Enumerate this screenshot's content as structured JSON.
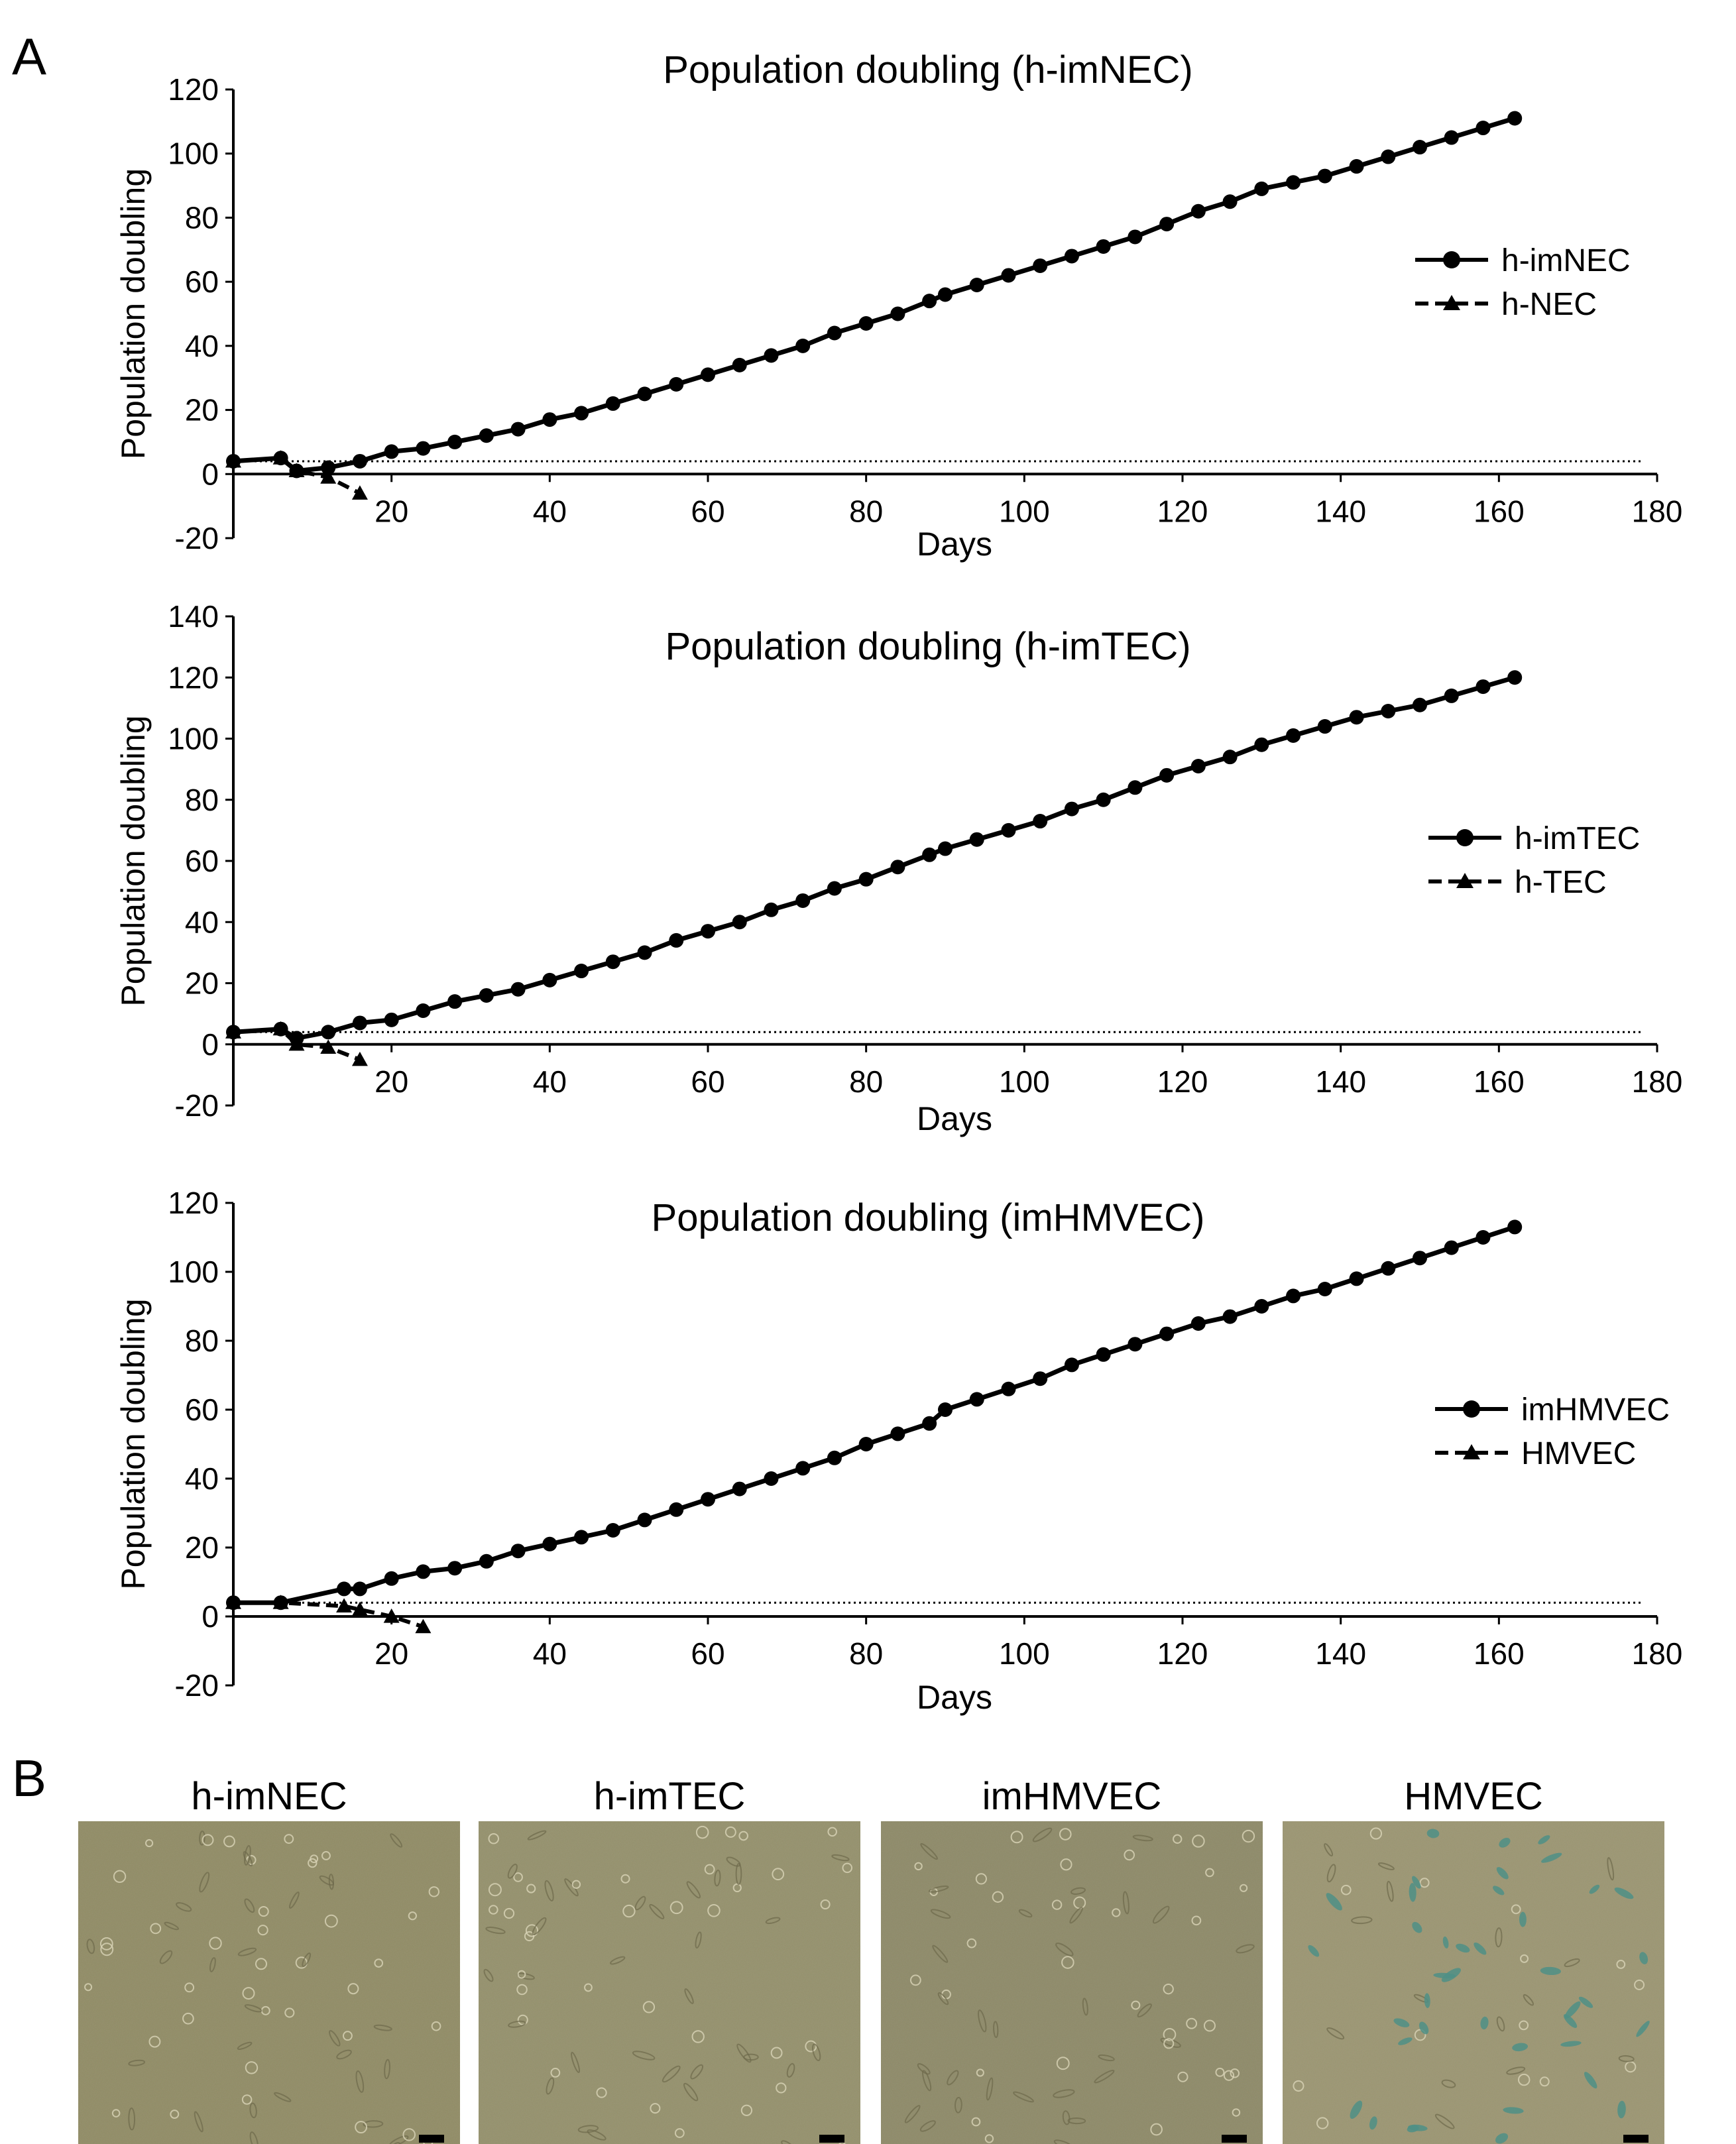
{
  "figure": {
    "panel_a_label": "A",
    "panel_b_label": "B"
  },
  "chart_data": [
    {
      "type": "line",
      "title": "Population doubling (h-imNEC)",
      "xlabel": "Days",
      "ylabel": "Population doubling",
      "xlim": [
        0,
        180
      ],
      "ylim": [
        -20,
        120
      ],
      "xticks": [
        20,
        40,
        60,
        80,
        100,
        120,
        140,
        160,
        180
      ],
      "yticks": [
        -20,
        0,
        20,
        40,
        60,
        80,
        100,
        120
      ],
      "reference_line_y": 4,
      "series": [
        {
          "name": "h-imNEC",
          "marker": "circle",
          "dash": "solid",
          "x": [
            0,
            6,
            8,
            12,
            16,
            20,
            24,
            28,
            32,
            36,
            40,
            44,
            48,
            52,
            56,
            60,
            64,
            68,
            72,
            76,
            80,
            84,
            88,
            90,
            94,
            98,
            102,
            106,
            110,
            114,
            118,
            122,
            126,
            130,
            134,
            138,
            142,
            146,
            150,
            154,
            158,
            162
          ],
          "y": [
            4,
            5,
            1,
            2,
            4,
            7,
            8,
            10,
            12,
            14,
            17,
            19,
            22,
            25,
            28,
            31,
            34,
            37,
            40,
            44,
            47,
            50,
            54,
            56,
            59,
            62,
            65,
            68,
            71,
            74,
            78,
            82,
            85,
            89,
            91,
            93,
            96,
            99,
            102,
            105,
            108,
            111
          ]
        },
        {
          "name": "h-NEC",
          "marker": "triangle",
          "dash": "dashed",
          "x": [
            0,
            6,
            8,
            12,
            16
          ],
          "y": [
            4,
            5,
            1,
            -1,
            -6
          ]
        }
      ]
    },
    {
      "type": "line",
      "title": "Population doubling (h-imTEC)",
      "xlabel": "Days",
      "ylabel": "Population doubling",
      "xlim": [
        0,
        180
      ],
      "ylim": [
        -20,
        140
      ],
      "xticks": [
        20,
        40,
        60,
        80,
        100,
        120,
        140,
        160,
        180
      ],
      "yticks": [
        -20,
        0,
        20,
        40,
        60,
        80,
        100,
        120,
        140
      ],
      "reference_line_y": 4,
      "series": [
        {
          "name": "h-imTEC",
          "marker": "circle",
          "dash": "solid",
          "x": [
            0,
            6,
            8,
            12,
            16,
            20,
            24,
            28,
            32,
            36,
            40,
            44,
            48,
            52,
            56,
            60,
            64,
            68,
            72,
            76,
            80,
            84,
            88,
            90,
            94,
            98,
            102,
            106,
            110,
            114,
            118,
            122,
            126,
            130,
            134,
            138,
            142,
            146,
            150,
            154,
            158,
            162
          ],
          "y": [
            4,
            5,
            2,
            4,
            7,
            8,
            11,
            14,
            16,
            18,
            21,
            24,
            27,
            30,
            34,
            37,
            40,
            44,
            47,
            51,
            54,
            58,
            62,
            64,
            67,
            70,
            73,
            77,
            80,
            84,
            88,
            91,
            94,
            98,
            101,
            104,
            107,
            109,
            111,
            114,
            117,
            120
          ]
        },
        {
          "name": "h-TEC",
          "marker": "triangle",
          "dash": "dashed",
          "x": [
            0,
            6,
            8,
            12,
            16
          ],
          "y": [
            4,
            5,
            0,
            -1,
            -5
          ]
        }
      ]
    },
    {
      "type": "line",
      "title": "Population doubling (imHMVEC)",
      "xlabel": "Days",
      "ylabel": "Population doubling",
      "xlim": [
        0,
        180
      ],
      "ylim": [
        -20,
        120
      ],
      "xticks": [
        20,
        40,
        60,
        80,
        100,
        120,
        140,
        160,
        180
      ],
      "yticks": [
        -20,
        0,
        20,
        40,
        60,
        80,
        100,
        120
      ],
      "reference_line_y": 4,
      "series": [
        {
          "name": "imHMVEC",
          "marker": "circle",
          "dash": "solid",
          "x": [
            0,
            6,
            14,
            16,
            20,
            24,
            28,
            32,
            36,
            40,
            44,
            48,
            52,
            56,
            60,
            64,
            68,
            72,
            76,
            80,
            84,
            88,
            90,
            94,
            98,
            102,
            106,
            110,
            114,
            118,
            122,
            126,
            130,
            134,
            138,
            142,
            146,
            150,
            154,
            158,
            162
          ],
          "y": [
            4,
            4,
            8,
            8,
            11,
            13,
            14,
            16,
            19,
            21,
            23,
            25,
            28,
            31,
            34,
            37,
            40,
            43,
            46,
            50,
            53,
            56,
            60,
            63,
            66,
            69,
            73,
            76,
            79,
            82,
            85,
            87,
            90,
            93,
            95,
            98,
            101,
            104,
            107,
            110,
            113
          ]
        },
        {
          "name": "HMVEC",
          "marker": "triangle",
          "dash": "dashed",
          "x": [
            0,
            6,
            14,
            16,
            20,
            24
          ],
          "y": [
            4,
            4,
            3,
            2,
            0,
            -3
          ]
        }
      ]
    }
  ],
  "micrographs": [
    {
      "label": "h-imNEC",
      "tone": "#8f8a63"
    },
    {
      "label": "h-imTEC",
      "tone": "#938f6a"
    },
    {
      "label": "imHMVEC",
      "tone": "#8c8866"
    },
    {
      "label": "HMVEC",
      "tone": "#9a9470"
    }
  ]
}
